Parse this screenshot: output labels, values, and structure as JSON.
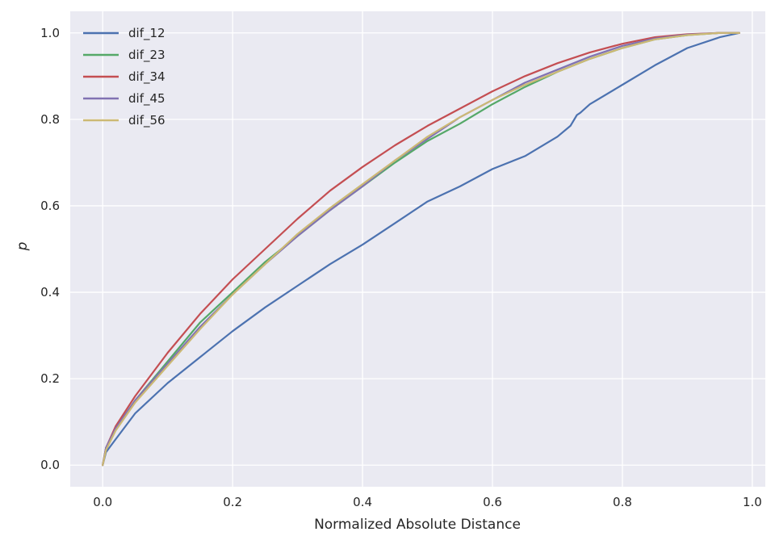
{
  "chart_data": {
    "type": "line",
    "title": "",
    "xlabel": "Normalized Absolute Distance",
    "ylabel": "p",
    "xlim": [
      -0.05,
      1.02
    ],
    "ylim": [
      -0.05,
      1.05
    ],
    "xticks": [
      "0.0",
      "0.2",
      "0.4",
      "0.6",
      "0.8",
      "1.0"
    ],
    "yticks": [
      "0.0",
      "0.2",
      "0.4",
      "0.6",
      "0.8",
      "1.0"
    ],
    "grid": true,
    "legend_position": "top-left",
    "background": "#EAEAF2",
    "series": [
      {
        "name": "dif_12",
        "color": "#4C72B0",
        "x": [
          0.0,
          0.005,
          0.02,
          0.05,
          0.1,
          0.15,
          0.2,
          0.25,
          0.3,
          0.35,
          0.4,
          0.45,
          0.5,
          0.55,
          0.6,
          0.65,
          0.7,
          0.72,
          0.73,
          0.735,
          0.75,
          0.8,
          0.85,
          0.9,
          0.95,
          0.98
        ],
        "y": [
          0.0,
          0.03,
          0.06,
          0.12,
          0.19,
          0.25,
          0.31,
          0.365,
          0.415,
          0.465,
          0.51,
          0.56,
          0.61,
          0.645,
          0.685,
          0.715,
          0.76,
          0.785,
          0.81,
          0.815,
          0.835,
          0.88,
          0.925,
          0.965,
          0.99,
          1.0
        ]
      },
      {
        "name": "dif_23",
        "color": "#55A868",
        "x": [
          0.0,
          0.005,
          0.02,
          0.05,
          0.1,
          0.15,
          0.2,
          0.25,
          0.3,
          0.35,
          0.4,
          0.45,
          0.5,
          0.55,
          0.6,
          0.65,
          0.7,
          0.75,
          0.8,
          0.85,
          0.9,
          0.95,
          0.98
        ],
        "y": [
          0.0,
          0.04,
          0.085,
          0.15,
          0.24,
          0.33,
          0.4,
          0.47,
          0.53,
          0.59,
          0.645,
          0.7,
          0.75,
          0.79,
          0.835,
          0.875,
          0.91,
          0.94,
          0.965,
          0.985,
          0.995,
          1.0,
          1.0
        ]
      },
      {
        "name": "dif_34",
        "color": "#C44E52",
        "x": [
          0.0,
          0.005,
          0.02,
          0.05,
          0.1,
          0.15,
          0.2,
          0.25,
          0.3,
          0.35,
          0.4,
          0.45,
          0.5,
          0.55,
          0.6,
          0.65,
          0.7,
          0.75,
          0.8,
          0.85,
          0.9,
          0.95,
          0.98
        ],
        "y": [
          0.0,
          0.04,
          0.09,
          0.16,
          0.26,
          0.35,
          0.43,
          0.5,
          0.57,
          0.635,
          0.69,
          0.74,
          0.785,
          0.825,
          0.865,
          0.9,
          0.93,
          0.955,
          0.975,
          0.99,
          0.997,
          1.0,
          1.0
        ]
      },
      {
        "name": "dif_45",
        "color": "#8172B2",
        "x": [
          0.0,
          0.005,
          0.02,
          0.05,
          0.1,
          0.15,
          0.2,
          0.25,
          0.3,
          0.35,
          0.4,
          0.45,
          0.5,
          0.55,
          0.6,
          0.65,
          0.7,
          0.75,
          0.8,
          0.85,
          0.9,
          0.95,
          0.98
        ],
        "y": [
          0.0,
          0.04,
          0.085,
          0.15,
          0.235,
          0.32,
          0.395,
          0.465,
          0.53,
          0.59,
          0.645,
          0.705,
          0.755,
          0.805,
          0.845,
          0.885,
          0.915,
          0.945,
          0.97,
          0.987,
          0.996,
          1.0,
          1.0
        ]
      },
      {
        "name": "dif_56",
        "color": "#CCB974",
        "x": [
          0.0,
          0.005,
          0.02,
          0.05,
          0.1,
          0.15,
          0.2,
          0.25,
          0.3,
          0.35,
          0.4,
          0.45,
          0.5,
          0.55,
          0.6,
          0.65,
          0.7,
          0.75,
          0.8,
          0.85,
          0.9,
          0.95,
          0.98
        ],
        "y": [
          0.0,
          0.035,
          0.08,
          0.145,
          0.23,
          0.315,
          0.395,
          0.465,
          0.535,
          0.595,
          0.65,
          0.705,
          0.76,
          0.805,
          0.845,
          0.88,
          0.91,
          0.94,
          0.965,
          0.985,
          0.995,
          1.0,
          1.0
        ]
      }
    ]
  }
}
